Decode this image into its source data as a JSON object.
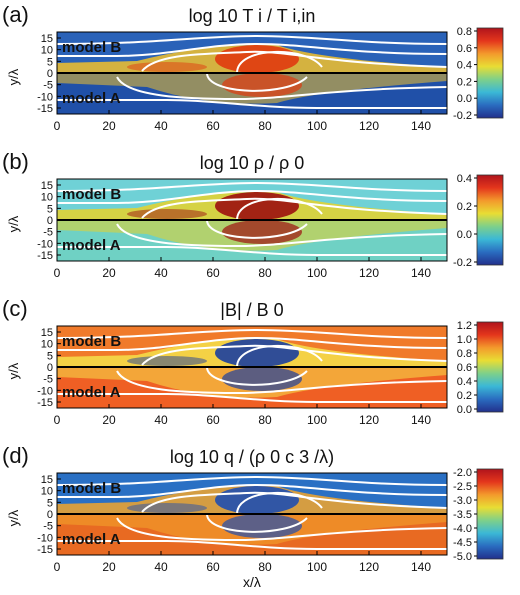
{
  "panels": [
    {
      "letter": "(a)",
      "title": "log 10 T i / T i,in",
      "ylabel": "y/λ",
      "top_label": "model B",
      "bottom_label": "model A",
      "bottom_label_color": "#ffffff",
      "xlabel": "",
      "colorbar": {
        "ticks": [
          "0.8",
          "0.6",
          "0.4",
          "0.2",
          "0.0",
          "-0.2"
        ]
      },
      "x_ticks": [
        "0",
        "20",
        "40",
        "60",
        "80",
        "100",
        "120",
        "140"
      ],
      "y_ticks": [
        "15",
        "10",
        "5",
        "0",
        "-5",
        "-10",
        "-15"
      ],
      "colors": {
        "upper_bg": "#2a62b8",
        "lower_bg": "#2050a8",
        "hot": "#e03a10",
        "mid": "#f2c12a"
      }
    },
    {
      "letter": "(b)",
      "title": "log 10 ρ / ρ 0",
      "ylabel": "y/λ",
      "top_label": "model B",
      "bottom_label": "model A",
      "bottom_label_color": "#111111",
      "xlabel": "",
      "colorbar": {
        "ticks": [
          "0.4",
          "0.2",
          "0.0",
          "-0.2"
        ]
      },
      "x_ticks": [
        "0",
        "20",
        "40",
        "60",
        "80",
        "100",
        "120",
        "140"
      ],
      "y_ticks": [
        "15",
        "10",
        "5",
        "0",
        "-5",
        "-10",
        "-15"
      ],
      "colors": {
        "upper_bg": "#6fd1d6",
        "lower_bg": "#6fd1c4",
        "hot": "#9c1010",
        "mid": "#e8d22a"
      }
    },
    {
      "letter": "(c)",
      "title": "|B| / B 0",
      "ylabel": "y/λ",
      "top_label": "model B",
      "bottom_label": "model A",
      "bottom_label_color": "#ffffff",
      "xlabel": "",
      "colorbar": {
        "ticks": [
          "1.2",
          "1.0",
          "0.8",
          "0.6",
          "0.4",
          "0.2",
          "0.0"
        ]
      },
      "x_ticks": [
        "0",
        "20",
        "40",
        "60",
        "80",
        "100",
        "120",
        "140"
      ],
      "y_ticks": [
        "15",
        "10",
        "5",
        "0",
        "-5",
        "-10",
        "-15"
      ],
      "colors": {
        "upper_bg": "#f07a2a",
        "lower_bg": "#ef5f24",
        "hot": "#1b3e9e",
        "mid": "#f5e04a"
      }
    },
    {
      "letter": "(d)",
      "title": "log 10 q / (ρ 0 c 3 /λ)",
      "ylabel": "y/λ",
      "top_label": "model B",
      "bottom_label": "model A",
      "bottom_label_color": "#111111",
      "xlabel": "x/λ",
      "colorbar": {
        "ticks": [
          "-2.0",
          "-2.5",
          "-3.0",
          "-3.5",
          "-4.0",
          "-4.5",
          "-5.0"
        ]
      },
      "x_ticks": [
        "0",
        "20",
        "40",
        "60",
        "80",
        "100",
        "120",
        "140"
      ],
      "y_ticks": [
        "15",
        "10",
        "5",
        "0",
        "-5",
        "-10",
        "-15"
      ],
      "colors": {
        "upper_bg": "#2a70c4",
        "lower_bg": "#e86a22",
        "hot": "#1f4fb0",
        "mid": "#f2a52c"
      }
    }
  ],
  "colorbar_colors": [
    "#b0141c",
    "#e4361c",
    "#f39a2c",
    "#e8dd34",
    "#7ed08a",
    "#3bb8d6",
    "#2a6cc0",
    "#22308c"
  ]
}
